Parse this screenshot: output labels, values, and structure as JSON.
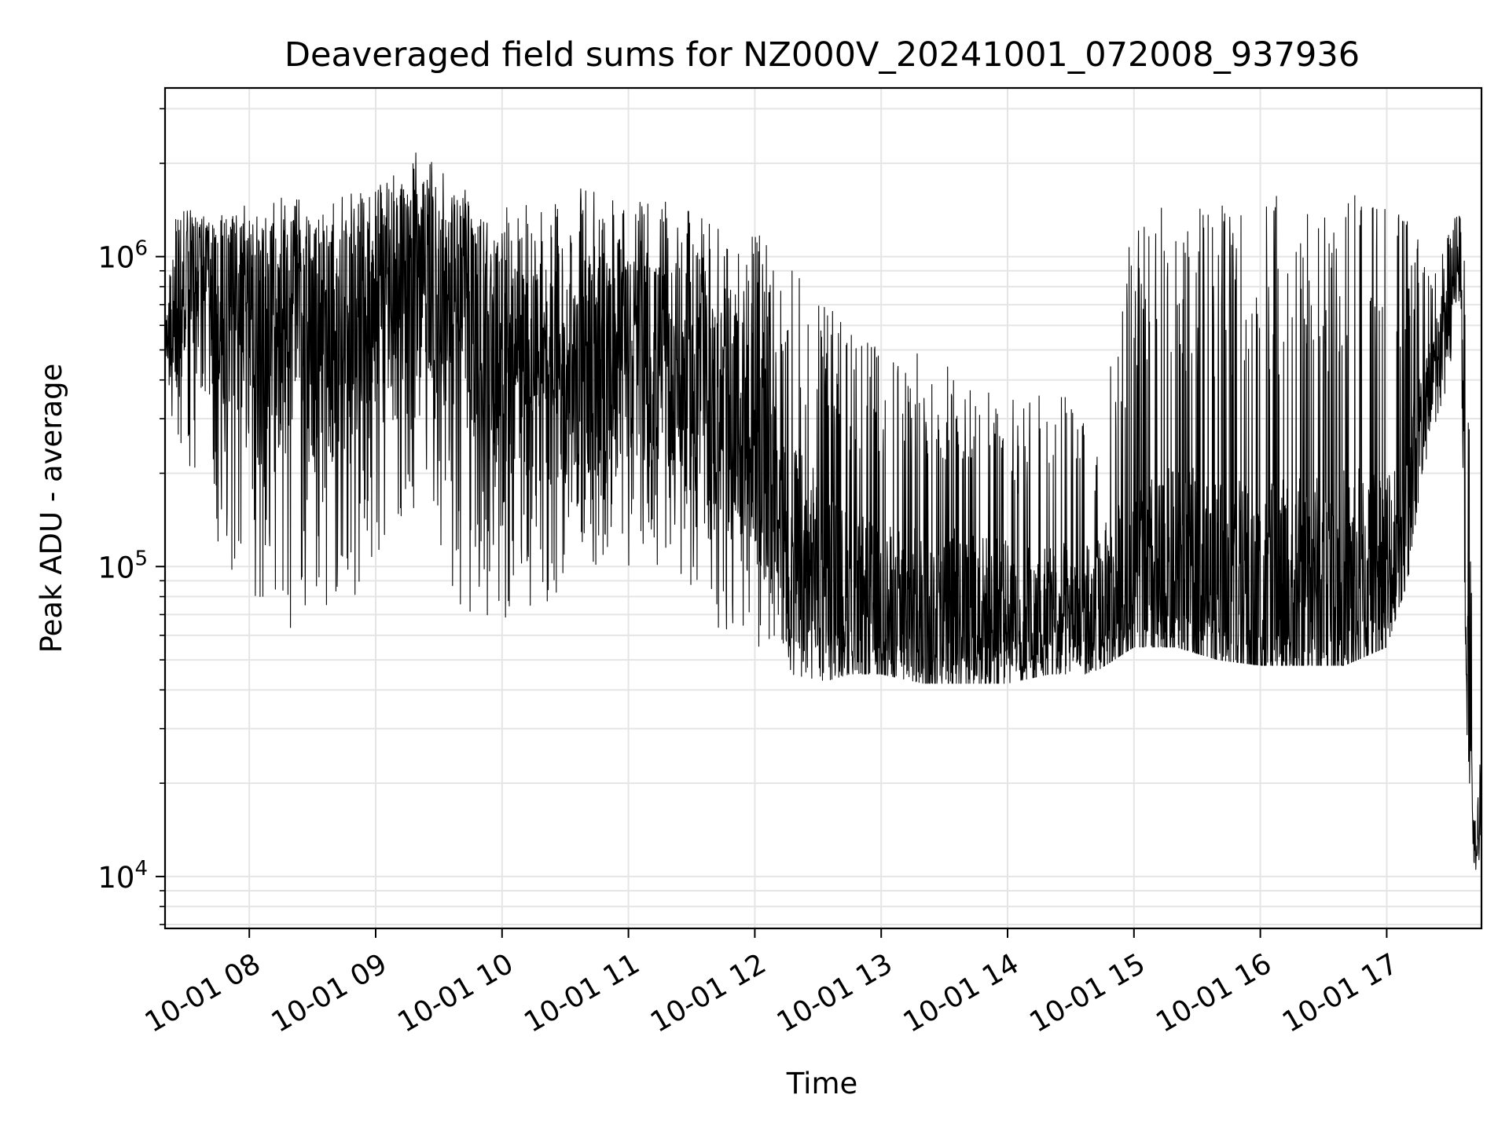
{
  "chart_data": {
    "type": "line",
    "title": "Deaveraged field sums for NZ000V_20241001_072008_937936",
    "xlabel": "Time",
    "ylabel": "Peak ADU - average",
    "yscale": "log",
    "ylim": [
      6800,
      3500000
    ],
    "xlim": [
      "2024-10-01 07:20",
      "2024-10-01 17:45"
    ],
    "grid": true,
    "line_color": "#000000",
    "y_major_ticks": [
      {
        "value": 10000,
        "base": "10",
        "exp": "4"
      },
      {
        "value": 100000,
        "base": "10",
        "exp": "5"
      },
      {
        "value": 1000000,
        "base": "10",
        "exp": "6"
      }
    ],
    "x_ticks": [
      {
        "time": "2024-10-01 08:00",
        "label": "10-01 08"
      },
      {
        "time": "2024-10-01 09:00",
        "label": "10-01 09"
      },
      {
        "time": "2024-10-01 10:00",
        "label": "10-01 10"
      },
      {
        "time": "2024-10-01 11:00",
        "label": "10-01 11"
      },
      {
        "time": "2024-10-01 12:00",
        "label": "10-01 12"
      },
      {
        "time": "2024-10-01 13:00",
        "label": "10-01 13"
      },
      {
        "time": "2024-10-01 14:00",
        "label": "10-01 14"
      },
      {
        "time": "2024-10-01 15:00",
        "label": "10-01 15"
      },
      {
        "time": "2024-10-01 16:00",
        "label": "10-01 16"
      },
      {
        "time": "2024-10-01 17:00",
        "label": "10-01 17"
      }
    ],
    "series": [
      {
        "x": [
          "2024-10-01 07:20",
          "2024-10-01 07:25",
          "2024-10-01 07:30",
          "2024-10-01 07:40",
          "2024-10-01 08:00",
          "2024-10-01 08:20",
          "2024-10-01 08:40",
          "2024-10-01 09:00",
          "2024-10-01 09:20",
          "2024-10-01 09:40",
          "2024-10-01 10:00",
          "2024-10-01 10:20",
          "2024-10-01 10:40",
          "2024-10-01 11:00",
          "2024-10-01 11:20",
          "2024-10-01 11:40",
          "2024-10-01 12:00",
          "2024-10-01 12:15",
          "2024-10-01 12:30",
          "2024-10-01 12:45",
          "2024-10-01 13:00",
          "2024-10-01 13:20",
          "2024-10-01 13:40",
          "2024-10-01 14:00",
          "2024-10-01 14:20",
          "2024-10-01 14:40",
          "2024-10-01 15:00",
          "2024-10-01 15:20",
          "2024-10-01 15:40",
          "2024-10-01 16:00",
          "2024-10-01 16:20",
          "2024-10-01 16:40",
          "2024-10-01 17:00",
          "2024-10-01 17:10",
          "2024-10-01 17:20",
          "2024-10-01 17:30",
          "2024-10-01 17:35",
          "2024-10-01 17:38",
          "2024-10-01 17:42",
          "2024-10-01 17:45"
        ],
        "median": [
          550000,
          600000,
          800000,
          700000,
          600000,
          550000,
          500000,
          750000,
          850000,
          700000,
          450000,
          400000,
          420000,
          480000,
          430000,
          330000,
          250000,
          120000,
          90000,
          75000,
          70000,
          68000,
          70000,
          68000,
          67000,
          70000,
          80000,
          85000,
          80000,
          70000,
          75000,
          80000,
          90000,
          150000,
          400000,
          700000,
          1000000,
          50000,
          13000,
          18000
        ],
        "high": [
          700000,
          1500000,
          1500000,
          1500000,
          1500000,
          1600000,
          1600000,
          1700000,
          2200000,
          1700000,
          1500000,
          1500000,
          1700000,
          1500000,
          1500000,
          1300000,
          1200000,
          1000000,
          800000,
          600000,
          500000,
          500000,
          450000,
          350000,
          400000,
          300000,
          1400000,
          1500000,
          1500000,
          1600000,
          1600000,
          1600000,
          1600000,
          1500000,
          900000,
          1200000,
          1500000,
          1200000,
          22000,
          25000
        ],
        "low": [
          450000,
          200000,
          180000,
          120000,
          80000,
          60000,
          70000,
          90000,
          150000,
          70000,
          65000,
          75000,
          100000,
          100000,
          80000,
          60000,
          55000,
          45000,
          42000,
          45000,
          45000,
          42000,
          42000,
          42000,
          45000,
          45000,
          55000,
          55000,
          50000,
          48000,
          48000,
          48000,
          55000,
          90000,
          250000,
          400000,
          700000,
          30000,
          9000,
          10000
        ]
      }
    ]
  }
}
